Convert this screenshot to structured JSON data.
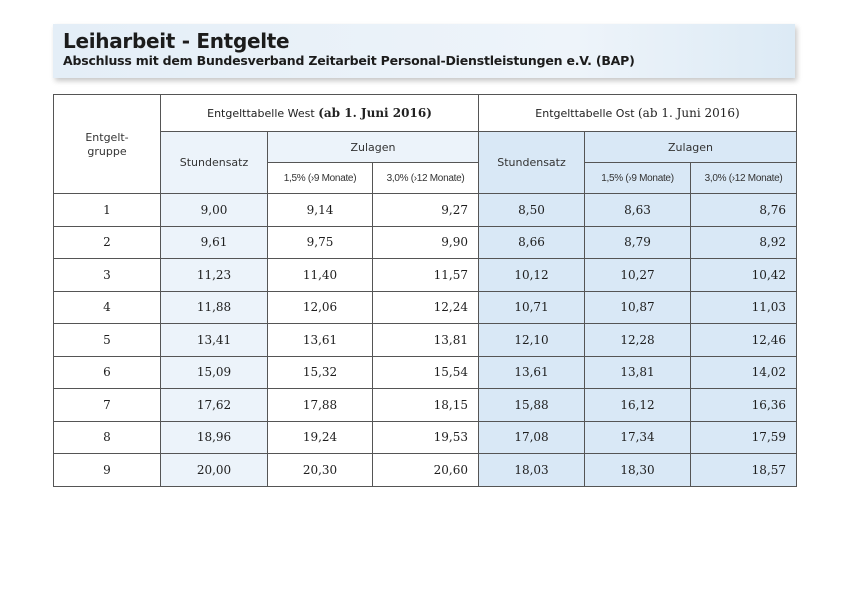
{
  "header": {
    "title": "Leiharbeit - Entgelte",
    "subtitle": "Abschluss mit dem Bundesverband Zeitarbeit Personal-Dienstleistungen e.V. (BAP)"
  },
  "table": {
    "gruppe_label_1": "Entgelt-",
    "gruppe_label_2": "gruppe",
    "west": {
      "title_sans": "Entgelttabelle West ",
      "title_serif": "(ab 1.  Juni 2016)",
      "stundensatz": "Stundensatz",
      "zulagen": "Zulagen",
      "sub1": "1,5% (›9 Monate)",
      "sub2": "3,0% (›12 Monate)"
    },
    "ost": {
      "title_sans": "Entgelttabelle Ost ",
      "title_serif": "(ab 1.  Juni 2016)",
      "stundensatz": "Stundensatz",
      "zulagen": "Zulagen",
      "sub1": "1,5% (›9 Monate)",
      "sub2": "3,0% (›12 Monate)"
    },
    "rows": [
      [
        "1",
        "9,00",
        "9,14",
        "9,27",
        "8,50",
        "8,63",
        "8,76"
      ],
      [
        "2",
        "9,61",
        "9,75",
        "9,90",
        "8,66",
        "8,79",
        "8,92"
      ],
      [
        "3",
        "11,23",
        "11,40",
        "11,57",
        "10,12",
        "10,27",
        "10,42"
      ],
      [
        "4",
        "11,88",
        "12,06",
        "12,24",
        "10,71",
        "10,87",
        "11,03"
      ],
      [
        "5",
        "13,41",
        "13,61",
        "13,81",
        "12,10",
        "12,28",
        "12,46"
      ],
      [
        "6",
        "15,09",
        "15,32",
        "15,54",
        "13,61",
        "13,81",
        "14,02"
      ],
      [
        "7",
        "17,62",
        "17,88",
        "18,15",
        "15,88",
        "16,12",
        "16,36"
      ],
      [
        "8",
        "18,96",
        "19,24",
        "19,53",
        "17,08",
        "17,34",
        "17,59"
      ],
      [
        "9",
        "20,00",
        "20,30",
        "20,60",
        "18,03",
        "18,30",
        "18,57"
      ]
    ]
  }
}
